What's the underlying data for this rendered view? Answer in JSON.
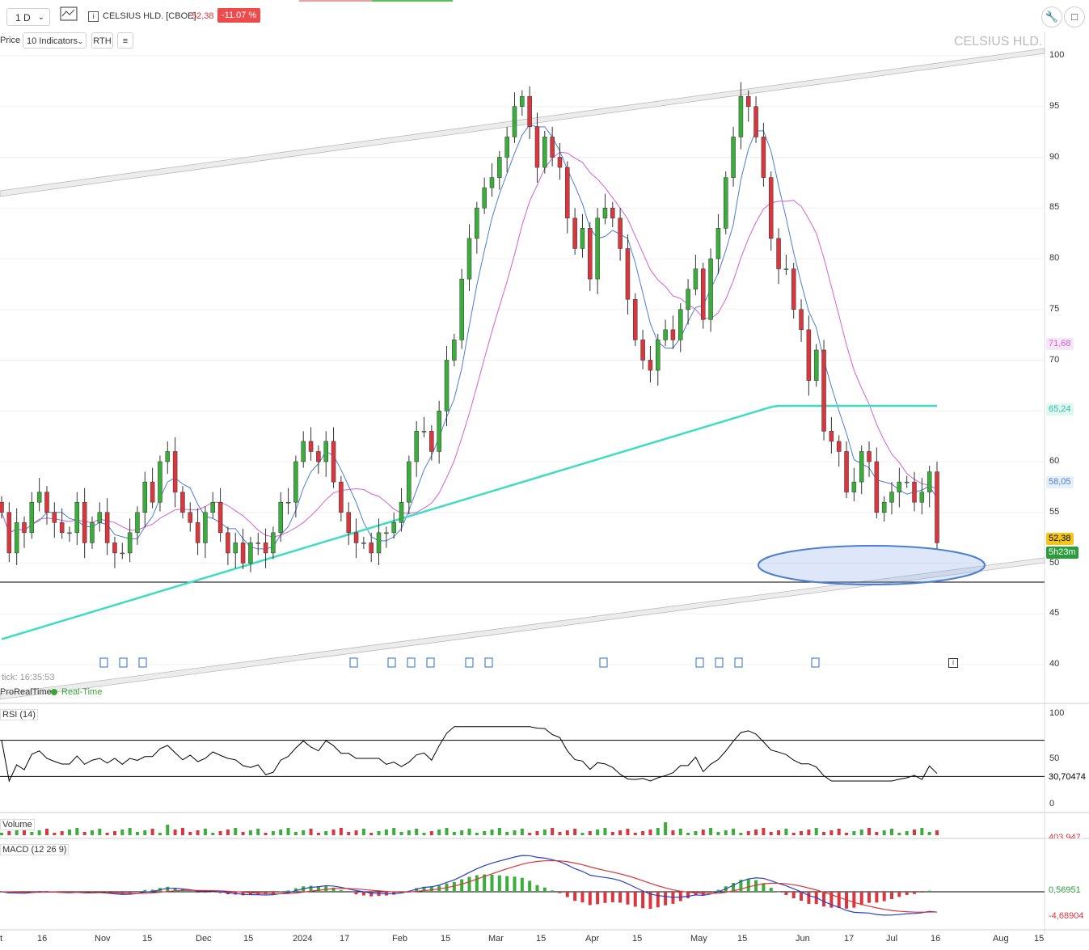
{
  "toolbar": {
    "timeframe": "1 D",
    "instrument": "CELSIUS HLD. [CBOE]",
    "last_price": "52,38",
    "change_pct": "-11.07 %",
    "price_btn": "Price",
    "indicators": "10 Indicators",
    "rth": "RTH"
  },
  "chart": {
    "watermark": "CELSIUS HLD.",
    "last_tick": "tick: 16:35:53",
    "feed": "ProRealTime",
    "feed_status": "Real-Time",
    "price_tags": {
      "ma_pink": "71,68",
      "ma_teal": "65,24",
      "ma_blue": "58,05",
      "last": "52,38",
      "countdown": "5h23m"
    }
  },
  "rsi": {
    "label": "RSI (14)",
    "value": "30,70474",
    "ticks": [
      "100",
      "50",
      "0"
    ]
  },
  "volume": {
    "label": "Volume",
    "value": "403,947"
  },
  "macd": {
    "label": "MACD (12 26 9)",
    "macd_value": "0,56951",
    "signal_value": "-4,68904"
  },
  "xaxis_labels": [
    "t",
    "16",
    "Nov",
    "15",
    "Dec",
    "15",
    "2024",
    "17",
    "Feb",
    "15",
    "Mar",
    "15",
    "Apr",
    "15",
    "May",
    "15",
    "Jun",
    "17",
    "Jul",
    "16",
    "Aug",
    "15"
  ],
  "yaxis_labels": [
    "100",
    "95",
    "90",
    "85",
    "80",
    "75",
    "70",
    "65",
    "60",
    "55",
    "50",
    "45",
    "40"
  ],
  "chart_data": {
    "type": "candlestick",
    "title": "CELSIUS HLD. [CBOE]",
    "ylim": [
      38,
      101
    ],
    "series": [
      {
        "name": "close",
        "values": [
          55,
          51,
          54,
          53,
          56,
          57,
          55,
          54,
          53,
          53,
          56,
          52,
          54,
          55,
          52,
          51,
          51,
          53,
          55,
          58,
          56,
          60,
          61,
          57,
          55,
          54,
          52,
          55,
          56,
          53,
          51,
          52,
          50,
          52,
          52,
          51,
          53,
          56,
          56,
          60,
          62,
          61,
          60,
          62,
          58,
          55,
          53,
          52,
          52,
          51,
          53,
          53,
          54,
          56,
          60,
          63,
          63,
          61,
          65,
          70,
          72,
          78,
          82,
          85,
          87,
          88,
          90,
          92,
          95,
          96,
          93,
          89,
          92,
          90,
          89,
          84,
          81,
          83,
          78,
          84,
          85,
          84,
          81,
          76,
          72,
          70,
          69,
          72,
          73,
          72,
          75,
          77,
          79,
          74,
          80,
          83,
          88,
          92,
          96,
          95,
          92,
          88,
          82,
          79,
          79,
          75,
          73,
          68,
          71,
          63,
          62,
          61,
          57,
          58,
          61,
          60,
          55,
          56,
          57,
          58,
          58,
          56,
          57,
          59,
          52
        ]
      }
    ]
  }
}
